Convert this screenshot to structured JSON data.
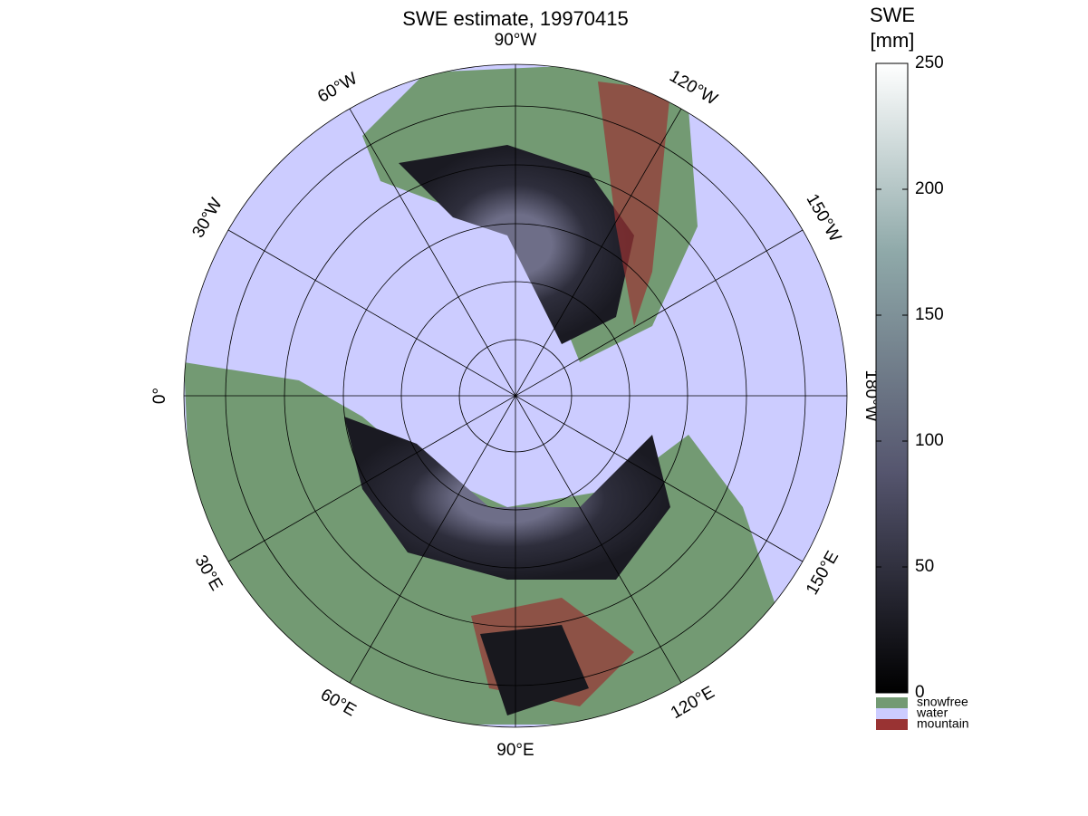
{
  "title": "SWE estimate, 19970415",
  "longitude_labels": [
    "90°W",
    "120°W",
    "150°W",
    "180°W",
    "150°E",
    "120°E",
    "90°E",
    "60°E",
    "30°E",
    "0°",
    "30°W",
    "60°W"
  ],
  "colorbar": {
    "title": [
      "SWE",
      "[mm]"
    ],
    "lim": [
      0,
      250
    ],
    "ticks": [
      0,
      50,
      100,
      150,
      200,
      250
    ]
  },
  "legend": [
    {
      "label": "snowfree",
      "color": "#739a73"
    },
    {
      "label": "water",
      "color": "#ccccff"
    },
    {
      "label": "mountain",
      "color": "#993333"
    }
  ]
}
